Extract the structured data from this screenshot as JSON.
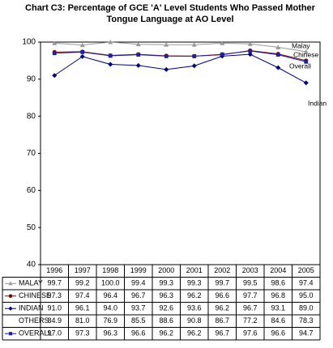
{
  "chart_data": {
    "type": "line",
    "title": "Chart C3:  Percentage of GCE 'A' Level Students Who Passed Mother Tongue Language at AO Level",
    "categories": [
      "1996",
      "1997",
      "1998",
      "1999",
      "2000",
      "2001",
      "2002",
      "2003",
      "2004",
      "2005"
    ],
    "ylim": [
      40,
      100
    ],
    "yticks": [
      40,
      50,
      60,
      70,
      80,
      90,
      100
    ],
    "grid": false,
    "series": [
      {
        "name": "MALAY",
        "color": "#999999",
        "marker": "triangle",
        "values": [
          99.7,
          99.2,
          100,
          99.4,
          99.3,
          99.3,
          99.7,
          99.5,
          98.6,
          97.4
        ],
        "value_labels": [
          "99.7",
          "99.2",
          "100.0",
          "99.4",
          "99.3",
          "99.3",
          "99.7",
          "99.5",
          "98.6",
          "97.4"
        ]
      },
      {
        "name": "CHINESE",
        "color": "#800000",
        "marker": "circle",
        "values": [
          97.3,
          97.4,
          96.4,
          96.7,
          96.3,
          96.2,
          96.6,
          97.7,
          96.8,
          95
        ],
        "value_labels": [
          "97.3",
          "97.4",
          "96.4",
          "96.7",
          "96.3",
          "96.2",
          "96.6",
          "97.7",
          "96.8",
          "95.0"
        ]
      },
      {
        "name": "INDIAN",
        "color": "#000080",
        "marker": "diamond",
        "values": [
          91,
          96.1,
          94,
          93.7,
          92.6,
          93.6,
          96.2,
          96.7,
          93.1,
          89
        ],
        "value_labels": [
          "91.0",
          "96.1",
          "94.0",
          "93.7",
          "92.6",
          "93.6",
          "96.2",
          "96.7",
          "93.1",
          "89.0"
        ]
      },
      {
        "name": "OTHERS",
        "color": "#000000",
        "marker": null,
        "values": [
          84.9,
          81,
          76.9,
          85.5,
          88.6,
          90.8,
          86.7,
          77.2,
          84.6,
          78.3
        ],
        "value_labels": [
          "84.9",
          "81.0",
          "76.9",
          "85.5",
          "88.6",
          "90.8",
          "86.7",
          "77.2",
          "84.6",
          "78.3"
        ]
      },
      {
        "name": "OVERALL",
        "color": "#1f1f9f",
        "marker": "square",
        "values": [
          97,
          97.3,
          96.3,
          96.6,
          96.2,
          96.2,
          96.7,
          97.6,
          96.6,
          94.7
        ],
        "value_labels": [
          "97.0",
          "97.3",
          "96.3",
          "96.6",
          "96.2",
          "96.2",
          "96.7",
          "97.6",
          "96.6",
          "94.7"
        ]
      }
    ],
    "annotations": [
      "Malay",
      "Chinese",
      "Overall",
      "Indian"
    ]
  }
}
